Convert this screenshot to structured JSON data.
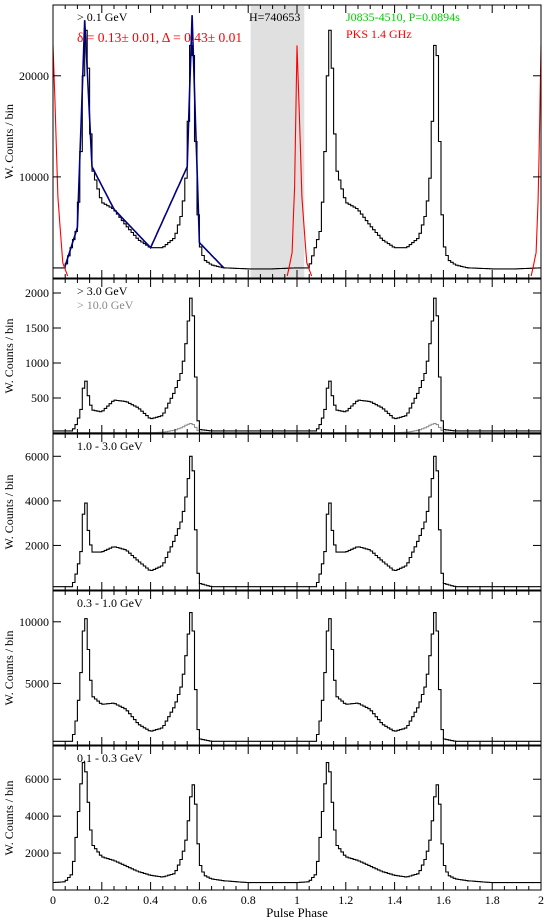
{
  "chart_data": [
    {
      "type": "line",
      "energy_band": "> 0.1 GeV",
      "ylabel": "W. Counts / bin",
      "xlim": [
        0,
        2.0
      ],
      "ylim": [
        0,
        27000
      ],
      "yticks": [
        10000,
        20000
      ],
      "annotations": {
        "band": "> 0.1 GeV",
        "fit_params": "δ = 0.13± 0.01, Δ = 0.43± 0.01",
        "htest": "H=740653",
        "pulsar": "J0835-4510, P=0.0894s",
        "radio": "PKS 1.4 GHz"
      },
      "shaded_phase_range": [
        0.81,
        1.03
      ],
      "series": [
        {
          "name": "> 0.1 GeV",
          "x": [
            0.0,
            0.05,
            0.1,
            0.12,
            0.13,
            0.14,
            0.16,
            0.2,
            0.25,
            0.3,
            0.35,
            0.4,
            0.45,
            0.5,
            0.53,
            0.55,
            0.56,
            0.57,
            0.58,
            0.59,
            0.6,
            0.62,
            0.65,
            0.7,
            0.8,
            0.9,
            1.0
          ],
          "y": [
            1000,
            1000,
            5000,
            15000,
            25000,
            24000,
            11000,
            7500,
            6800,
            5200,
            3800,
            3000,
            3000,
            4000,
            6500,
            11000,
            20000,
            26000,
            18000,
            9000,
            3500,
            1800,
            1300,
            1000,
            900,
            900,
            1000
          ]
        },
        {
          "name": "PKS 1.4 GHz",
          "x": [
            0.96,
            0.98,
            0.99,
            1.0,
            1.01,
            1.02,
            1.04,
            1.06
          ],
          "y": [
            200,
            2500,
            9000,
            23000,
            16000,
            8000,
            1500,
            200
          ]
        },
        {
          "name": "Model fit",
          "x": [
            0.05,
            0.1,
            0.13,
            0.16,
            0.25,
            0.4,
            0.55,
            0.57,
            0.6,
            0.7
          ],
          "y": [
            1200,
            5000,
            25500,
            11000,
            6800,
            3000,
            11000,
            26000,
            3500,
            1000
          ]
        }
      ]
    },
    {
      "type": "line",
      "energy_band": "> 3.0 GeV",
      "ylabel": "W. Counts / bin",
      "xlim": [
        0,
        2.0
      ],
      "ylim": [
        0,
        2200
      ],
      "yticks": [
        500,
        1000,
        1500,
        2000
      ],
      "annotations": {
        "band": "> 3.0 GeV",
        "band2": "> 10.0 GeV"
      },
      "series": [
        {
          "name": "> 3.0 GeV",
          "x": [
            0.0,
            0.08,
            0.1,
            0.12,
            0.13,
            0.14,
            0.16,
            0.2,
            0.25,
            0.3,
            0.35,
            0.4,
            0.45,
            0.5,
            0.53,
            0.55,
            0.56,
            0.57,
            0.58,
            0.59,
            0.6,
            0.65,
            0.8,
            1.0
          ],
          "y": [
            30,
            30,
            150,
            400,
            880,
            600,
            330,
            300,
            470,
            450,
            360,
            200,
            250,
            600,
            900,
            1400,
            1800,
            2050,
            1300,
            300,
            50,
            30,
            30,
            30
          ]
        },
        {
          "name": "> 10.0 GeV",
          "x": [
            0.0,
            0.4,
            0.45,
            0.5,
            0.53,
            0.55,
            0.57,
            0.59,
            0.6,
            0.65,
            1.0
          ],
          "y": [
            5,
            5,
            10,
            40,
            80,
            120,
            140,
            60,
            15,
            5,
            5
          ]
        }
      ]
    },
    {
      "type": "line",
      "energy_band": "1.0 - 3.0 GeV",
      "ylabel": "W. Counts / bin",
      "xlim": [
        0,
        2.0
      ],
      "ylim": [
        0,
        7000
      ],
      "yticks": [
        2000,
        4000,
        6000
      ],
      "annotations": {
        "band": "1.0 - 3.0 GeV"
      },
      "series": [
        {
          "name": "1.0 - 3.0 GeV",
          "x": [
            0.0,
            0.08,
            0.1,
            0.12,
            0.13,
            0.14,
            0.16,
            0.2,
            0.25,
            0.3,
            0.35,
            0.4,
            0.45,
            0.5,
            0.53,
            0.55,
            0.56,
            0.57,
            0.58,
            0.59,
            0.6,
            0.65,
            0.8,
            1.0
          ],
          "y": [
            150,
            150,
            900,
            2000,
            4800,
            3000,
            1700,
            1700,
            1950,
            1800,
            1300,
            850,
            1100,
            2300,
            3200,
            4500,
            5500,
            6500,
            4200,
            1200,
            300,
            150,
            150,
            150
          ]
        }
      ]
    },
    {
      "type": "line",
      "energy_band": "0.3 - 1.0 GeV",
      "ylabel": "W. Counts / bin",
      "xlim": [
        0,
        2.0
      ],
      "ylim": [
        0,
        12500
      ],
      "yticks": [
        5000,
        10000
      ],
      "annotations": {
        "band": "0.3 - 1.0 GeV"
      },
      "series": [
        {
          "name": "0.3 - 1.0 GeV",
          "x": [
            0.0,
            0.08,
            0.1,
            0.12,
            0.13,
            0.14,
            0.16,
            0.2,
            0.25,
            0.3,
            0.35,
            0.4,
            0.45,
            0.5,
            0.53,
            0.55,
            0.56,
            0.57,
            0.58,
            0.59,
            0.6,
            0.65,
            0.8,
            1.0
          ],
          "y": [
            300,
            300,
            2500,
            7000,
            11500,
            9000,
            4000,
            3300,
            3400,
            2900,
            1700,
            1100,
            1400,
            3200,
            5000,
            8000,
            10000,
            11500,
            7000,
            2000,
            500,
            300,
            300,
            300
          ]
        }
      ]
    },
    {
      "type": "line",
      "energy_band": "0.1 - 0.3 GeV",
      "ylabel": "W. Counts / bin",
      "xlabel": "Pulse Phase",
      "xlim": [
        0,
        2.0
      ],
      "ylim": [
        0,
        7800
      ],
      "yticks": [
        2000,
        4000,
        6000
      ],
      "xticks": [
        0,
        0.2,
        0.4,
        0.6,
        0.8,
        1,
        1.2,
        1.4,
        1.6,
        1.8,
        2
      ],
      "annotations": {
        "band": "0.1 - 0.3 GeV"
      },
      "series": [
        {
          "name": "0.1 - 0.3 GeV",
          "x": [
            0.0,
            0.05,
            0.08,
            0.1,
            0.12,
            0.13,
            0.14,
            0.16,
            0.2,
            0.25,
            0.3,
            0.35,
            0.4,
            0.45,
            0.5,
            0.53,
            0.55,
            0.56,
            0.57,
            0.58,
            0.59,
            0.6,
            0.62,
            0.65,
            0.7,
            0.8,
            0.9,
            1.0
          ],
          "y": [
            400,
            450,
            900,
            3500,
            6500,
            7300,
            5500,
            2500,
            1800,
            1600,
            1300,
            1000,
            800,
            700,
            900,
            1800,
            3000,
            4500,
            5600,
            5800,
            3500,
            1500,
            800,
            600,
            500,
            400,
            400,
            400
          ]
        }
      ]
    }
  ]
}
